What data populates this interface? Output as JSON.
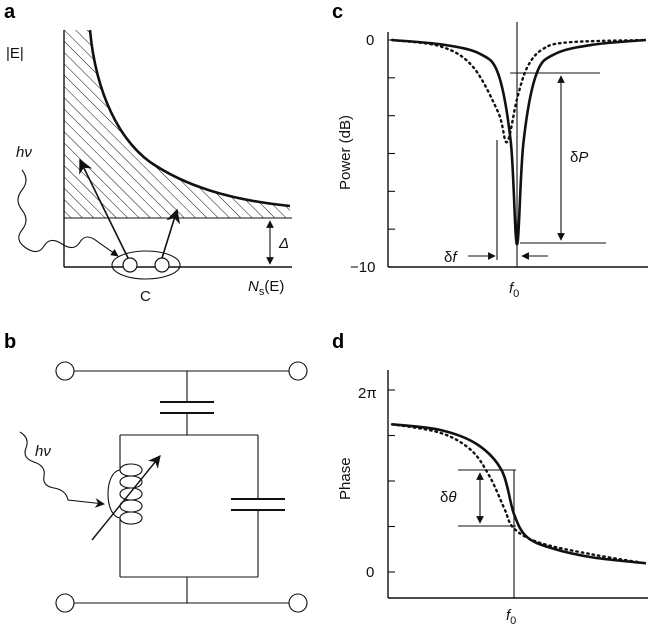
{
  "panels": {
    "a": {
      "label": "a",
      "y_axis_label": "|E|",
      "x_axis_label_main": "N",
      "x_axis_label_sub": "s",
      "x_axis_label_tail": "(E)",
      "photon_label": "hν",
      "gap_label": "Δ",
      "pair_label": "C"
    },
    "b": {
      "label": "b",
      "photon_label": "hν"
    },
    "c": {
      "label": "c",
      "y_axis_label": "Power (dB)",
      "tick_top": "0",
      "tick_bottom": "−10",
      "x_marker_main": "f",
      "x_marker_sub": "0",
      "delta_p_label": "δP",
      "delta_f_label": "δf"
    },
    "d": {
      "label": "d",
      "y_axis_label": "Phase",
      "tick_top": "2π",
      "tick_bottom": "0",
      "x_marker_main": "f",
      "x_marker_sub": "0",
      "delta_theta_label": "δθ"
    }
  },
  "chart_data": [
    {
      "type": "line",
      "panel": "c",
      "ylabel": "Power (dB)",
      "ylim": [
        -10,
        0
      ],
      "xlabel": "",
      "x_marker": "f0",
      "series": [
        {
          "style": "solid",
          "x": [
            -1,
            -0.6,
            -0.3,
            -0.15,
            -0.05,
            0,
            0.05,
            0.15,
            0.3,
            0.6,
            1
          ],
          "values": [
            0,
            -0.2,
            -0.6,
            -1.5,
            -4.5,
            -9,
            -4.5,
            -1.5,
            -0.6,
            -0.2,
            0
          ]
        },
        {
          "style": "dotted",
          "x": [
            -1,
            -0.6,
            -0.35,
            -0.15,
            -0.08,
            0,
            0.08,
            0.2,
            0.4,
            1
          ],
          "values": [
            0,
            -0.3,
            -1.2,
            -3.2,
            -4.5,
            -2.6,
            -1.2,
            -0.4,
            -0.1,
            0
          ]
        }
      ]
    },
    {
      "type": "line",
      "panel": "d",
      "ylabel": "Phase",
      "ylim": [
        0,
        6.283
      ],
      "xlabel": "",
      "x_marker": "f0",
      "series": [
        {
          "style": "solid",
          "x": [
            -1,
            -0.6,
            -0.3,
            -0.1,
            0,
            0.1,
            0.3,
            0.6,
            1
          ],
          "values": [
            5.1,
            4.9,
            4.4,
            3.5,
            2.0,
            1.2,
            0.8,
            0.5,
            0.3
          ]
        },
        {
          "style": "dotted",
          "x": [
            -1,
            -0.6,
            -0.35,
            -0.2,
            -0.08,
            0,
            0.2,
            0.6,
            1
          ],
          "values": [
            5.1,
            4.8,
            4.2,
            3.3,
            2.2,
            1.5,
            1.0,
            0.6,
            0.3
          ]
        }
      ]
    }
  ]
}
